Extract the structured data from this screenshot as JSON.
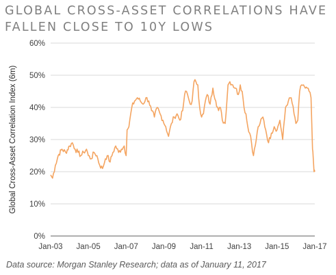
{
  "title_lines": [
    "GLOBAL CROSS-ASSET CORRELATIONS HAVE",
    "FALLEN CLOSE TO 10Y LOWS"
  ],
  "source_note": "Data source: Morgan Stanley Research; data as of January 11, 2017",
  "colors": {
    "line": "#f4a460",
    "grid": "#d9d9d9",
    "axis": "#7f7f7f"
  },
  "chart_data": {
    "type": "line",
    "title": "GLOBAL CROSS-ASSET CORRELATIONS HAVE FALLEN CLOSE TO 10Y LOWS",
    "xlabel": "",
    "ylabel": "Global Cross-Asset Correlation Index (6m)",
    "ylim": [
      0,
      60
    ],
    "xlim": [
      "2003-01",
      "2017-01"
    ],
    "grid": true,
    "legend": "none",
    "x_ticks": [
      "Jan-03",
      "Jan-05",
      "Jan-07",
      "Jan-09",
      "Jan-11",
      "Jan-13",
      "Jan-15",
      "Jan-17"
    ],
    "y_ticks": [
      "0%",
      "10%",
      "20%",
      "30%",
      "40%",
      "50%",
      "60%"
    ],
    "series": [
      {
        "name": "",
        "x": [
          2003.0,
          2003.1,
          2003.25,
          2003.4,
          2003.6,
          2003.8,
          2004.0,
          2004.15,
          2004.3,
          2004.45,
          2004.6,
          2004.75,
          2004.9,
          2005.0,
          2005.15,
          2005.3,
          2005.45,
          2005.6,
          2005.75,
          2005.9,
          2006.0,
          2006.15,
          2006.3,
          2006.45,
          2006.6,
          2006.75,
          2006.9,
          2007.0,
          2007.05,
          2007.15,
          2007.3,
          2007.45,
          2007.6,
          2007.75,
          2007.9,
          2008.05,
          2008.2,
          2008.35,
          2008.5,
          2008.65,
          2008.8,
          2008.95,
          2009.1,
          2009.25,
          2009.4,
          2009.55,
          2009.7,
          2009.85,
          2010.0,
          2010.1,
          2010.2,
          2010.3,
          2010.4,
          2010.5,
          2010.6,
          2010.7,
          2010.8,
          2010.9,
          2011.0,
          2011.1,
          2011.2,
          2011.3,
          2011.45,
          2011.6,
          2011.75,
          2011.9,
          2012.0,
          2012.1,
          2012.25,
          2012.4,
          2012.5,
          2012.65,
          2012.8,
          2012.95,
          2013.05,
          2013.15,
          2013.25,
          2013.35,
          2013.45,
          2013.6,
          2013.75,
          2013.9,
          2014.0,
          2014.1,
          2014.25,
          2014.4,
          2014.55,
          2014.7,
          2014.85,
          2015.0,
          2015.15,
          2015.3,
          2015.45,
          2015.6,
          2015.75,
          2015.9,
          2016.0,
          2016.1,
          2016.2,
          2016.3,
          2016.4,
          2016.5,
          2016.6,
          2016.7,
          2016.8,
          2016.88,
          2016.92,
          2016.96,
          2017.0
        ],
        "values": [
          19,
          18,
          22,
          25,
          27,
          26,
          28,
          29,
          27,
          26,
          25,
          26,
          27,
          25,
          24,
          26,
          25,
          22,
          21,
          24,
          25,
          23,
          26,
          28,
          26,
          27,
          28,
          25,
          33,
          34,
          40,
          42,
          43,
          42,
          41,
          43,
          42,
          39,
          37,
          40,
          38,
          36,
          34,
          31,
          35,
          37,
          38,
          36,
          39,
          44,
          45,
          43,
          41,
          42,
          48,
          48,
          47,
          40,
          37,
          38,
          42,
          44,
          41,
          46,
          42,
          39,
          40,
          36,
          35,
          47,
          48,
          47,
          46,
          44,
          47,
          45,
          40,
          38,
          34,
          31,
          25,
          30,
          34,
          35,
          37,
          33,
          29,
          32,
          34,
          33,
          36,
          30,
          40,
          42,
          43,
          38,
          35,
          36,
          45,
          47,
          47,
          46,
          46,
          45,
          43,
          27,
          24,
          20,
          20
        ]
      }
    ]
  }
}
